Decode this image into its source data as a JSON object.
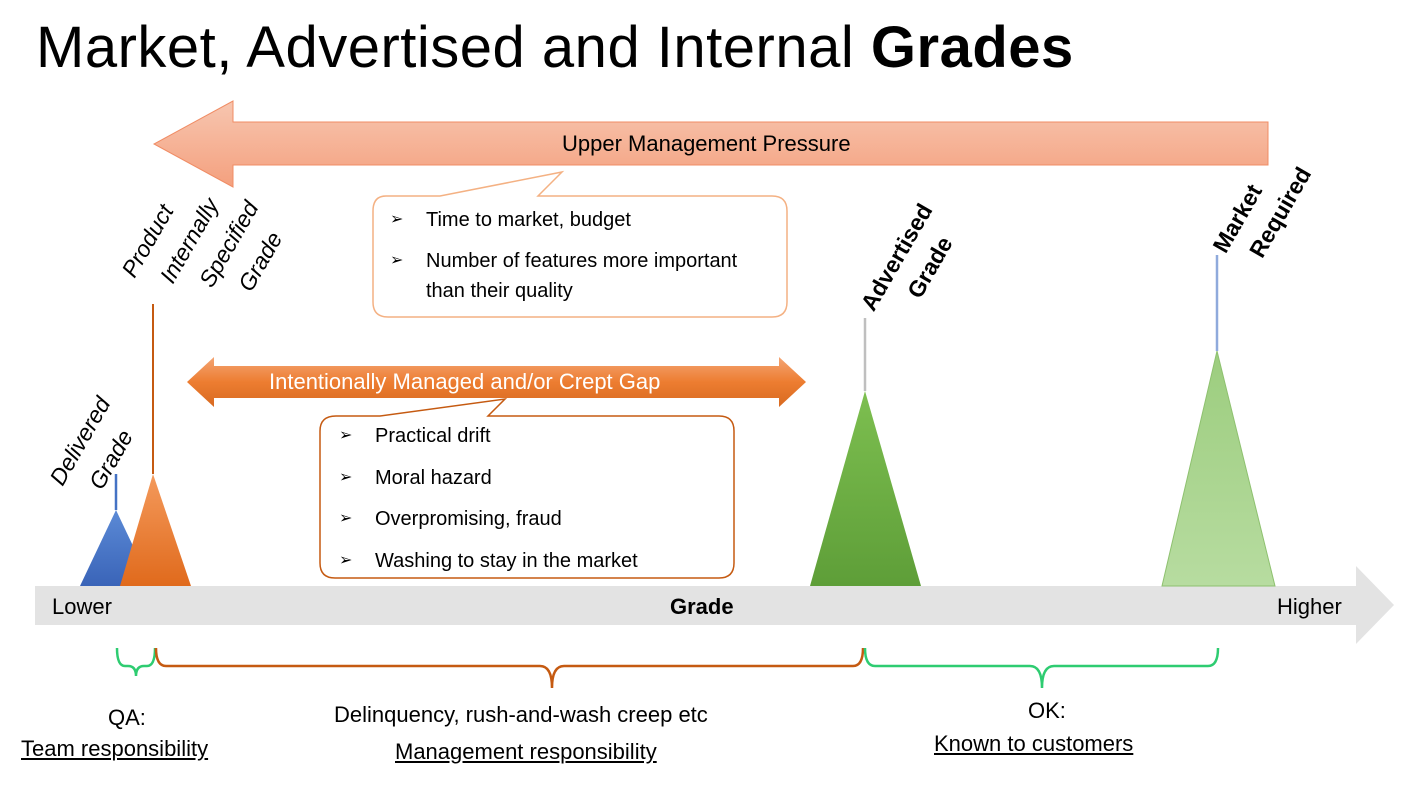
{
  "title": {
    "main": "Market, Advertised and Internal ",
    "bold": "Grades"
  },
  "pressure_arrow": {
    "label": "Upper Management Pressure",
    "color": "#f4a98a"
  },
  "gap_arrow": {
    "label": "Intentionally Managed and/or Crept Gap",
    "color": "#ed7d31"
  },
  "callout_top": {
    "items": [
      "Time to market, budget",
      "Number of features more important than their quality"
    ]
  },
  "callout_mid": {
    "items": [
      "Practical drift",
      "Moral hazard",
      "Overpromising, fraud",
      "Washing to stay in the market"
    ]
  },
  "axis": {
    "lower": "Lower",
    "center": "Grade",
    "higher": "Higher"
  },
  "grades": {
    "delivered": {
      "line1": "Delivered",
      "line2": "Grade",
      "color": "#4472c4"
    },
    "internal": {
      "line1": "Product",
      "line2": "Internally",
      "line3": "Specified",
      "line4": "Grade",
      "color": "#ed7d31"
    },
    "advertised": {
      "line1": "Advertised",
      "line2": "Grade",
      "color": "#70ad47"
    },
    "market": {
      "line1": "Market",
      "line2": "Required",
      "color": "#a9d18e"
    }
  },
  "bottom": {
    "qa": {
      "line1": "QA:",
      "line2": "Team responsibility"
    },
    "mgmt": {
      "line1": "Delinquency, rush-and-wash creep etc",
      "line2": "Management responsibility"
    },
    "ok": {
      "line1": "OK:",
      "line2": "Known to customers"
    }
  },
  "marker_glyph": "➢"
}
